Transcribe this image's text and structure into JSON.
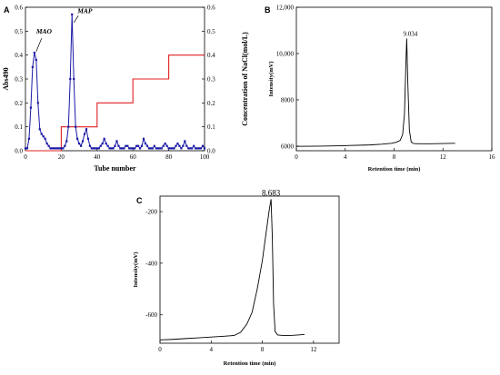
{
  "chart_data": [
    {
      "panel": "A",
      "type": "line",
      "xlabel": "Tube number",
      "ylabel": "Abs490",
      "y2label": "Concentration of NaCl(mol/L)",
      "xlim": [
        0,
        100
      ],
      "ylim": [
        0,
        0.6
      ],
      "y2lim": [
        0,
        0.6
      ],
      "xticks": [
        0,
        20,
        40,
        60,
        80,
        100
      ],
      "yticks": [
        0.0,
        0.1,
        0.2,
        0.3,
        0.4,
        0.5,
        0.6
      ],
      "y2ticks": [
        0.0,
        0.1,
        0.2,
        0.3,
        0.4,
        0.5,
        0.6
      ],
      "annotations": [
        "MAO",
        "MAP"
      ],
      "series": [
        {
          "axis": "left",
          "color": "#1a1aa6",
          "marker": "square",
          "x": [
            0,
            1,
            2,
            3,
            4,
            5,
            6,
            7,
            8,
            9,
            10,
            11,
            12,
            13,
            14,
            15,
            16,
            17,
            18,
            19,
            20,
            21,
            22,
            23,
            24,
            25,
            26,
            27,
            28,
            29,
            30,
            31,
            32,
            33,
            34,
            35,
            36,
            37,
            38,
            39,
            40,
            41,
            42,
            43,
            44,
            45,
            46,
            47,
            48,
            49,
            50,
            51,
            52,
            53,
            54,
            55,
            56,
            57,
            58,
            59,
            60,
            61,
            62,
            63,
            64,
            65,
            66,
            67,
            68,
            69,
            70,
            71,
            72,
            73,
            74,
            75,
            76,
            77,
            78,
            79,
            80,
            81,
            82,
            83,
            84,
            85,
            86,
            87,
            88,
            89,
            90,
            91,
            92,
            93,
            94,
            95,
            96,
            97,
            98,
            99,
            100
          ],
          "values": [
            0.01,
            0.01,
            0.05,
            0.18,
            0.35,
            0.41,
            0.38,
            0.2,
            0.09,
            0.07,
            0.06,
            0.05,
            0.03,
            0.02,
            0.01,
            0.01,
            0.01,
            0.01,
            0.01,
            0.01,
            0.01,
            0.01,
            0.02,
            0.04,
            0.1,
            0.3,
            0.57,
            0.3,
            0.1,
            0.05,
            0.03,
            0.02,
            0.04,
            0.07,
            0.09,
            0.05,
            0.02,
            0.01,
            0.01,
            0.01,
            0.01,
            0.01,
            0.02,
            0.03,
            0.05,
            0.03,
            0.02,
            0.01,
            0.01,
            0.01,
            0.02,
            0.04,
            0.02,
            0.01,
            0.01,
            0.01,
            0.02,
            0.02,
            0.01,
            0.01,
            0.01,
            0.01,
            0.02,
            0.02,
            0.01,
            0.02,
            0.05,
            0.03,
            0.02,
            0.01,
            0.01,
            0.01,
            0.02,
            0.01,
            0.01,
            0.01,
            0.01,
            0.02,
            0.03,
            0.02,
            0.01,
            0.01,
            0.01,
            0.01,
            0.02,
            0.03,
            0.02,
            0.01,
            0.02,
            0.04,
            0.02,
            0.01,
            0.01,
            0.01,
            0.02,
            0.01,
            0.01,
            0.01,
            0.01,
            0.02,
            0.01
          ]
        },
        {
          "axis": "right",
          "color": "#e02020",
          "marker": "none",
          "x": [
            0,
            20,
            20,
            40,
            40,
            60,
            60,
            80,
            80,
            100
          ],
          "values": [
            0,
            0,
            0.1,
            0.1,
            0.2,
            0.2,
            0.3,
            0.3,
            0.4,
            0.4
          ]
        }
      ]
    },
    {
      "panel": "B",
      "type": "line",
      "xlabel": "Retention time (min)",
      "ylabel": "Intensity(mV)",
      "xlim": [
        0,
        16
      ],
      "ylim": [
        5800,
        12000
      ],
      "xticks": [
        0,
        4,
        8,
        12,
        16
      ],
      "yticks": [
        6000,
        8000,
        10000,
        12000
      ],
      "ytick_labels": [
        "6000",
        "8000",
        "10,000",
        "12,000"
      ],
      "peak_label": "9.034",
      "peak_x": 9.034,
      "peak_y": 10650,
      "series": [
        {
          "color": "#000000",
          "x": [
            0,
            2,
            4,
            6,
            7,
            7.8,
            8.2,
            8.5,
            8.7,
            8.85,
            8.95,
            9.034,
            9.12,
            9.25,
            9.4,
            9.6,
            10,
            11,
            13
          ],
          "values": [
            5990,
            6000,
            6020,
            6050,
            6080,
            6120,
            6170,
            6250,
            6500,
            7400,
            9300,
            10650,
            8800,
            6700,
            6180,
            6110,
            6100,
            6100,
            6120
          ]
        }
      ]
    },
    {
      "panel": "C",
      "type": "line",
      "xlabel": "Retention time (min)",
      "ylabel": "Intensity(mV)",
      "xlim": [
        0,
        14
      ],
      "ylim": [
        -710,
        -140
      ],
      "xticks": [
        0,
        4,
        8,
        12
      ],
      "yticks": [
        -600,
        -400,
        -200
      ],
      "peak_label": "8.683",
      "peak_x": 8.683,
      "peak_y": -152,
      "series": [
        {
          "color": "#000000",
          "x": [
            0,
            1,
            2,
            3,
            4,
            5,
            5.8,
            6.3,
            6.8,
            7.2,
            7.6,
            8.0,
            8.3,
            8.55,
            8.683,
            8.78,
            8.88,
            9.0,
            9.2,
            9.6,
            10.2,
            10.8,
            11.3
          ],
          "values": [
            -697,
            -695,
            -692,
            -689,
            -686,
            -683,
            -680,
            -668,
            -635,
            -590,
            -500,
            -390,
            -280,
            -190,
            -152,
            -300,
            -560,
            -665,
            -678,
            -680,
            -680,
            -678,
            -676
          ]
        }
      ]
    }
  ]
}
